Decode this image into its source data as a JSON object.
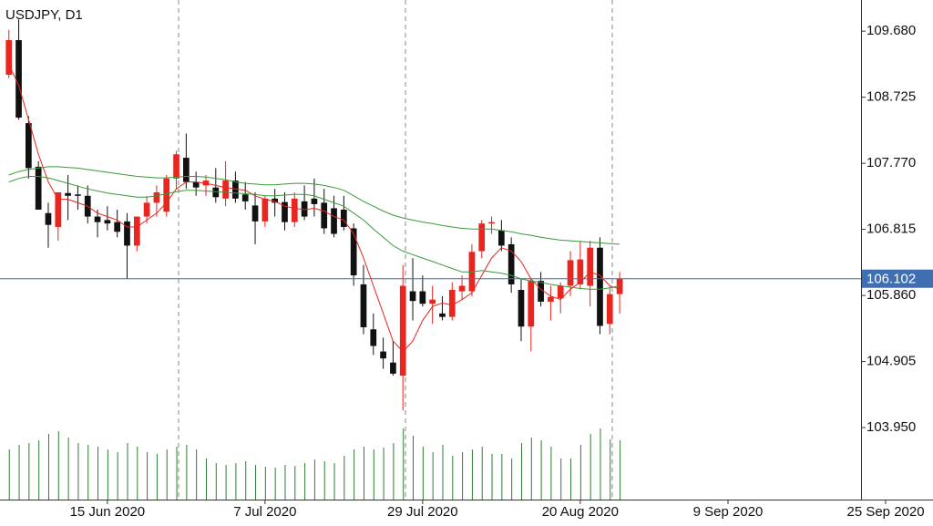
{
  "chart_data": {
    "type": "candlestick",
    "title": "USDJPY, D1",
    "up_color": "#e8251f",
    "down_color": "#111111",
    "volume_color": "#2e7d32",
    "open": [
      109.05,
      109.55,
      108.35,
      107.72,
      107.05,
      106.85,
      107.34,
      107.32,
      107.3,
      107.0,
      106.95,
      106.92,
      106.93,
      106.58,
      107.0,
      107.2,
      107.07,
      107.55,
      107.85,
      107.5,
      107.45,
      107.42,
      107.26,
      107.52,
      107.32,
      107.16,
      106.93,
      107.26,
      107.21,
      106.92,
      107.22,
      107.26,
      107.2,
      107.12,
      107.1,
      106.83,
      106.02,
      105.37,
      105.05,
      104.89,
      104.7,
      105.92,
      105.92,
      105.74,
      105.6,
      105.55,
      105.92,
      105.92,
      106.5,
      106.9,
      106.8,
      106.6,
      105.94,
      105.41,
      106.07,
      105.77,
      105.82,
      106.0,
      106.02,
      106.0,
      106.55,
      105.45,
      105.88
    ],
    "high": [
      109.7,
      109.85,
      108.45,
      107.8,
      107.2,
      107.35,
      107.6,
      107.45,
      107.45,
      107.1,
      107.15,
      107.1,
      107.05,
      107.0,
      107.3,
      107.45,
      107.6,
      107.95,
      108.2,
      107.65,
      107.6,
      107.7,
      107.8,
      107.65,
      107.5,
      107.35,
      107.3,
      107.4,
      107.35,
      107.35,
      107.45,
      107.55,
      107.4,
      107.3,
      107.3,
      106.9,
      106.3,
      105.6,
      105.25,
      105.2,
      106.3,
      106.4,
      106.15,
      106.0,
      105.85,
      106.05,
      106.15,
      106.6,
      106.95,
      107.0,
      106.95,
      106.7,
      106.1,
      106.1,
      106.2,
      106.0,
      106.05,
      106.5,
      106.65,
      106.65,
      106.7,
      106.0,
      106.2
    ],
    "low": [
      109.0,
      108.4,
      107.55,
      107.15,
      106.55,
      106.65,
      106.95,
      107.1,
      106.9,
      106.7,
      106.8,
      106.7,
      106.1,
      106.5,
      106.9,
      107.0,
      107.0,
      107.4,
      107.4,
      107.3,
      107.3,
      107.2,
      107.15,
      107.2,
      107.1,
      106.6,
      106.85,
      107.0,
      106.8,
      106.85,
      106.95,
      107.0,
      106.75,
      106.7,
      106.8,
      106.0,
      105.3,
      105.0,
      104.8,
      104.7,
      104.2,
      105.5,
      105.7,
      105.45,
      105.5,
      105.5,
      105.8,
      105.85,
      106.4,
      106.75,
      106.5,
      105.9,
      105.2,
      105.05,
      105.7,
      105.5,
      105.6,
      105.85,
      105.95,
      105.7,
      105.3,
      105.3,
      105.6
    ],
    "close": [
      109.55,
      108.43,
      107.7,
      107.1,
      106.88,
      107.35,
      107.3,
      107.3,
      107.0,
      106.92,
      106.9,
      106.78,
      106.58,
      107.0,
      107.2,
      107.35,
      107.55,
      107.9,
      107.5,
      107.42,
      107.52,
      107.28,
      107.52,
      107.26,
      107.22,
      106.93,
      107.26,
      107.2,
      106.92,
      107.26,
      107.0,
      107.18,
      106.83,
      106.75,
      106.85,
      106.15,
      105.4,
      105.13,
      104.95,
      104.73,
      106.0,
      105.78,
      105.74,
      105.8,
      105.55,
      105.94,
      106.0,
      106.49,
      106.9,
      106.92,
      106.58,
      106.02,
      105.41,
      106.07,
      105.77,
      105.84,
      106.0,
      106.37,
      106.38,
      106.55,
      105.42,
      105.88,
      106.1
    ],
    "volume": [
      55,
      60,
      62,
      65,
      72,
      75,
      68,
      62,
      60,
      58,
      55,
      52,
      62,
      58,
      52,
      50,
      55,
      58,
      60,
      55,
      45,
      40,
      38,
      40,
      42,
      38,
      36,
      35,
      38,
      37,
      40,
      44,
      42,
      40,
      48,
      55,
      58,
      55,
      57,
      62,
      78,
      70,
      58,
      52,
      60,
      48,
      52,
      55,
      58,
      50,
      50,
      45,
      62,
      68,
      65,
      58,
      45,
      45,
      60,
      72,
      78,
      66,
      65
    ],
    "series": [
      {
        "color": "#e8251f",
        "values": [
          109.2,
          108.9,
          108.4,
          107.9,
          107.5,
          107.25,
          107.25,
          107.2,
          107.15,
          107.05,
          107.0,
          106.95,
          106.85,
          106.85,
          106.95,
          107.05,
          107.2,
          107.4,
          107.5,
          107.5,
          107.48,
          107.45,
          107.42,
          107.4,
          107.38,
          107.3,
          107.25,
          107.22,
          107.15,
          107.12,
          107.1,
          107.12,
          107.08,
          107.0,
          106.95,
          106.75,
          106.4,
          106.0,
          105.6,
          105.2,
          105.05,
          105.2,
          105.5,
          105.7,
          105.75,
          105.72,
          105.8,
          105.9,
          106.15,
          106.4,
          106.55,
          106.5,
          106.35,
          106.1,
          105.95,
          105.85,
          105.8,
          105.95,
          106.05,
          106.2,
          106.15,
          106.0,
          105.95
        ]
      },
      {
        "color": "#3a9a3a",
        "values": [
          107.6,
          107.65,
          107.68,
          107.7,
          107.72,
          107.72,
          107.71,
          107.7,
          107.68,
          107.66,
          107.64,
          107.62,
          107.6,
          107.58,
          107.57,
          107.56,
          107.56,
          107.57,
          107.58,
          107.58,
          107.57,
          107.55,
          107.53,
          107.5,
          107.48,
          107.47,
          107.46,
          107.46,
          107.47,
          107.48,
          107.48,
          107.47,
          107.45,
          107.42,
          107.38,
          107.3,
          107.22,
          107.15,
          107.08,
          107.02,
          106.98,
          106.95,
          106.92,
          106.9,
          106.87,
          106.85,
          106.83,
          106.82,
          106.82,
          106.82,
          106.8,
          106.78,
          106.75,
          106.73,
          106.7,
          106.68,
          106.66,
          106.65,
          106.64,
          106.63,
          106.62,
          106.61,
          106.6
        ]
      },
      {
        "color": "#3a9a3a",
        "values": [
          107.5,
          107.55,
          107.58,
          107.58,
          107.56,
          107.52,
          107.48,
          107.44,
          107.4,
          107.37,
          107.34,
          107.32,
          107.3,
          107.28,
          107.28,
          107.3,
          107.33,
          107.36,
          107.38,
          107.38,
          107.37,
          107.36,
          107.35,
          107.34,
          107.33,
          107.32,
          107.3,
          107.3,
          107.31,
          107.32,
          107.32,
          107.3,
          107.25,
          107.2,
          107.15,
          107.05,
          106.95,
          106.82,
          106.7,
          106.58,
          106.5,
          106.45,
          106.4,
          106.35,
          106.3,
          106.25,
          106.2,
          106.2,
          106.22,
          106.2,
          106.18,
          106.15,
          106.1,
          106.07,
          106.05,
          106.02,
          106.0,
          105.98,
          105.96,
          105.95,
          105.95,
          105.97,
          106.0
        ]
      }
    ],
    "current_price": 106.102,
    "current_price_color": "#3f6fb0",
    "xlim": [
      -0.9,
      86.5
    ],
    "xticks": [
      {
        "value": 10,
        "label": "15 Jun 2020"
      },
      {
        "value": 26,
        "label": "7 Jul 2020"
      },
      {
        "value": 42,
        "label": "29 Jul 2020"
      },
      {
        "value": 58,
        "label": "20 Aug 2020"
      },
      {
        "value": 73,
        "label": "9 Sep 2020"
      },
      {
        "value": 89,
        "label": "25 Sep 2020"
      }
    ],
    "ylim": [
      102.91,
      110.13
    ],
    "yticks": [
      {
        "value": 109.68,
        "label": "109.680"
      },
      108.725,
      {
        "value": 107.77,
        "label": "107.770"
      },
      106.815,
      {
        "value": 105.86,
        "label": "105.860"
      },
      104.905,
      {
        "value": 103.95,
        "label": "103.950"
      }
    ]
  }
}
